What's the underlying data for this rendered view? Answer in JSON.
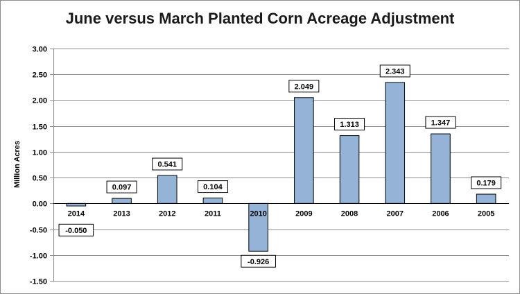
{
  "chart_data": {
    "type": "bar",
    "title": "June versus March Planted Corn Acreage Adjustment",
    "xlabel": "",
    "ylabel": "Million Acres",
    "categories": [
      "2014",
      "2013",
      "2012",
      "2011",
      "2010",
      "2009",
      "2008",
      "2007",
      "2006",
      "2005"
    ],
    "values": [
      -0.05,
      0.097,
      0.541,
      0.104,
      -0.926,
      2.049,
      1.313,
      2.343,
      1.347,
      0.179
    ],
    "value_labels": [
      "-0.050",
      "0.097",
      "0.541",
      "0.104",
      "-0.926",
      "2.049",
      "1.313",
      "2.343",
      "1.347",
      "0.179"
    ],
    "ylim": [
      -1.5,
      3.0
    ],
    "yticks": [
      3.0,
      2.5,
      2.0,
      1.5,
      1.0,
      0.5,
      0.0,
      -0.5,
      -1.0,
      -1.5
    ],
    "ytick_labels": [
      "3.00",
      "2.50",
      "2.00",
      "1.50",
      "1.00",
      "0.50",
      "0.00",
      "-0.50",
      "-1.00",
      "-1.50"
    ],
    "grid": true,
    "legend": "none",
    "colors": {
      "bar_fill": "#95b3d7",
      "bar_stroke": "#000000",
      "grid": "#8c8c8c"
    }
  }
}
